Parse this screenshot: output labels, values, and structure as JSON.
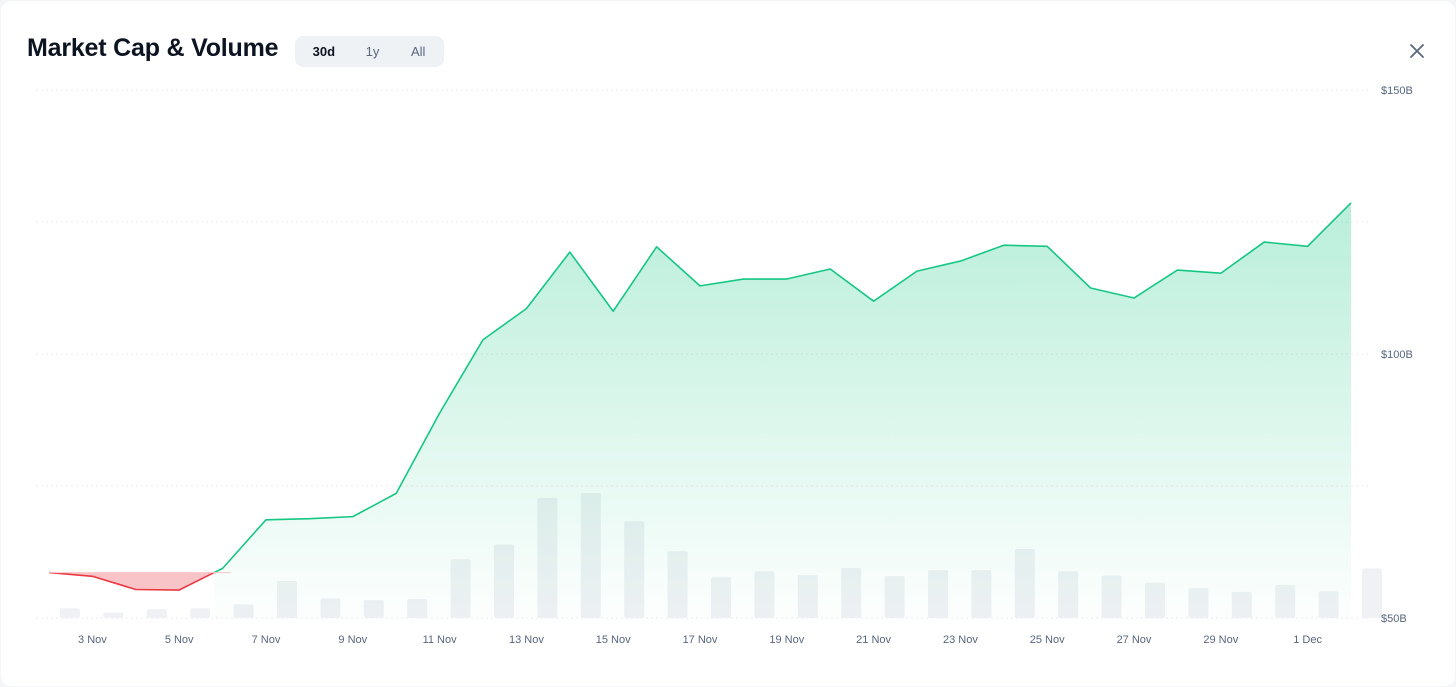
{
  "header": {
    "title": "Market Cap & Volume",
    "close_icon": "close-icon"
  },
  "range_tabs": [
    {
      "label": "30d",
      "active": true
    },
    {
      "label": "1y",
      "active": false
    },
    {
      "label": "All",
      "active": false
    }
  ],
  "colors": {
    "up_line": "#16c784",
    "down_line": "#ea3943",
    "down_fill": "#f8c4c7",
    "volume_bar": "#eff1f4",
    "grid": "#e8ebef"
  },
  "chart_data": {
    "type": "area",
    "title": "Market Cap & Volume",
    "y_tick_labels": [
      {
        "value": 150,
        "label": "$150B"
      },
      {
        "value": 100,
        "label": "$100B"
      },
      {
        "value": 50,
        "label": "$50B"
      }
    ],
    "ylim": [
      50,
      150
    ],
    "x_tick_labels": [
      "3 Nov",
      "5 Nov",
      "7 Nov",
      "9 Nov",
      "11 Nov",
      "13 Nov",
      "15 Nov",
      "17 Nov",
      "19 Nov",
      "21 Nov",
      "23 Nov",
      "25 Nov",
      "27 Nov",
      "29 Nov",
      "1 Dec"
    ],
    "grid": true,
    "baseline": 58.6,
    "series": [
      {
        "name": "",
        "dates": [
          "2 Nov",
          "3 Nov",
          "4 Nov",
          "5 Nov",
          "6 Nov",
          "7 Nov",
          "8 Nov",
          "9 Nov",
          "10 Nov",
          "11 Nov",
          "12 Nov",
          "13 Nov",
          "14 Nov",
          "15 Nov",
          "16 Nov",
          "17 Nov",
          "18 Nov",
          "19 Nov",
          "20 Nov",
          "21 Nov",
          "22 Nov",
          "23 Nov",
          "24 Nov",
          "25 Nov",
          "26 Nov",
          "27 Nov",
          "28 Nov",
          "29 Nov",
          "30 Nov",
          "1 Dec",
          "2 Dec"
        ],
        "values": [
          58.6,
          57.9,
          55.4,
          55.3,
          59.4,
          68.6,
          68.8,
          69.2,
          73.6,
          88.8,
          102.7,
          108.6,
          119.3,
          108.1,
          120.3,
          112.9,
          114.2,
          114.2,
          116.1,
          110.0,
          115.7,
          117.6,
          120.6,
          120.4,
          112.5,
          110.6,
          115.9,
          115.3,
          121.2,
          120.4,
          128.6
        ]
      }
    ],
    "volume": [
      1.8,
      1.0,
      1.6,
      1.8,
      2.5,
      6.8,
      3.6,
      3.3,
      3.5,
      10.8,
      13.5,
      22.1,
      23.0,
      17.8,
      12.3,
      7.5,
      8.6,
      7.9,
      9.2,
      7.7,
      8.8,
      8.8,
      12.7,
      8.6,
      7.8,
      6.5,
      5.5,
      4.8,
      6.1,
      4.9,
      9.1
    ]
  }
}
